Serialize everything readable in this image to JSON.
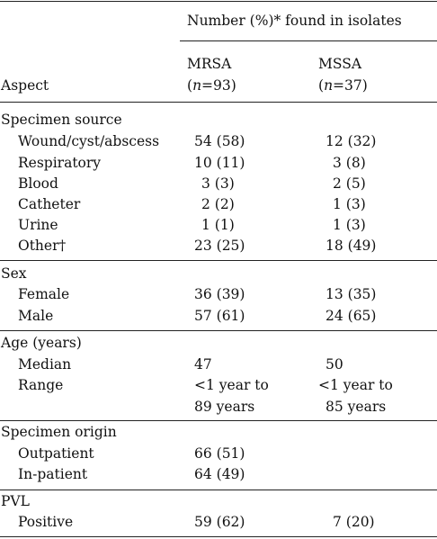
{
  "header": {
    "spanner": "Number (%)* found in isolates",
    "aspect_label": "Aspect",
    "col_mrsa": {
      "name": "MRSA",
      "n_var": "n",
      "n_val": "=93"
    },
    "col_mssa": {
      "name": "MSSA",
      "n_var": "n",
      "n_val": "=37"
    }
  },
  "sections": {
    "source": {
      "title": "Specimen source",
      "rows": [
        {
          "label": "Wound/cyst/abscess",
          "mrsa": "54 (58)",
          "mssa": "12 (32)"
        },
        {
          "label": "Respiratory",
          "mrsa": "10 (11)",
          "mssa": "3 (8)"
        },
        {
          "label": "Blood",
          "mrsa": "3 (3)",
          "mssa": "2 (5)"
        },
        {
          "label": "Catheter",
          "mrsa": "2 (2)",
          "mssa": "1 (3)"
        },
        {
          "label": "Urine",
          "mrsa": "1 (1)",
          "mssa": "1 (3)"
        },
        {
          "label": "Other†",
          "mrsa": "23 (25)",
          "mssa": "18 (49)"
        }
      ]
    },
    "sex": {
      "title": "Sex",
      "rows": [
        {
          "label": "Female",
          "mrsa": "36 (39)",
          "mssa": "13 (35)"
        },
        {
          "label": "Male",
          "mrsa": "57 (61)",
          "mssa": "24 (65)"
        }
      ]
    },
    "age": {
      "title": "Age (years)",
      "median": {
        "label": "Median",
        "mrsa": "47",
        "mssa": "50"
      },
      "range": {
        "label": "Range",
        "mrsa_line1": "<1 year to",
        "mrsa_line2": "89 years",
        "mssa_line1": "<1 year to",
        "mssa_line2": "85 years"
      }
    },
    "origin": {
      "title": "Specimen origin",
      "rows": [
        {
          "label": "Outpatient",
          "mrsa": "66 (51)",
          "mssa": ""
        },
        {
          "label": "In-patient",
          "mrsa": "64 (49)",
          "mssa": ""
        }
      ]
    },
    "pvl": {
      "title": "PVL",
      "rows": [
        {
          "label": "Positive",
          "mrsa": "59 (62)",
          "mssa": "7 (20)"
        }
      ]
    }
  }
}
